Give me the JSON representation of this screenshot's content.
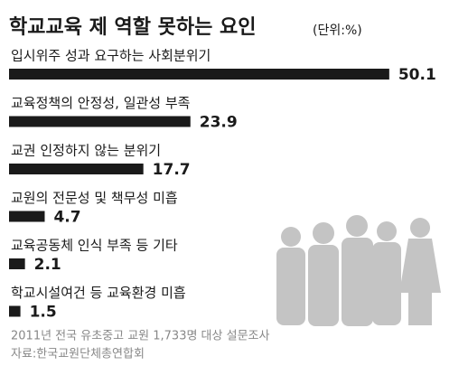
{
  "chart_data": {
    "type": "bar",
    "orientation": "horizontal",
    "title": "학교교육 제 역할 못하는 요인",
    "unit": "(단위:%)",
    "categories": [
      "입시위주 성과 요구하는 사회분위기",
      "교육정책의 안정성, 일관성 부족",
      "교권 인정하지 않는 분위기",
      "교원의 전문성 및 책무성 미흡",
      "교육공동체 인식 부족 등 기타",
      "학교시설여건 등 교육환경 미흡"
    ],
    "values": [
      50.1,
      23.9,
      17.7,
      4.7,
      2.1,
      1.5
    ],
    "color": "#1a1a1a",
    "notes": [
      "2011년 전국 유초중고 교원 1,733명 대상 설문조사",
      "자료:한국교원단체총연합회"
    ]
  }
}
